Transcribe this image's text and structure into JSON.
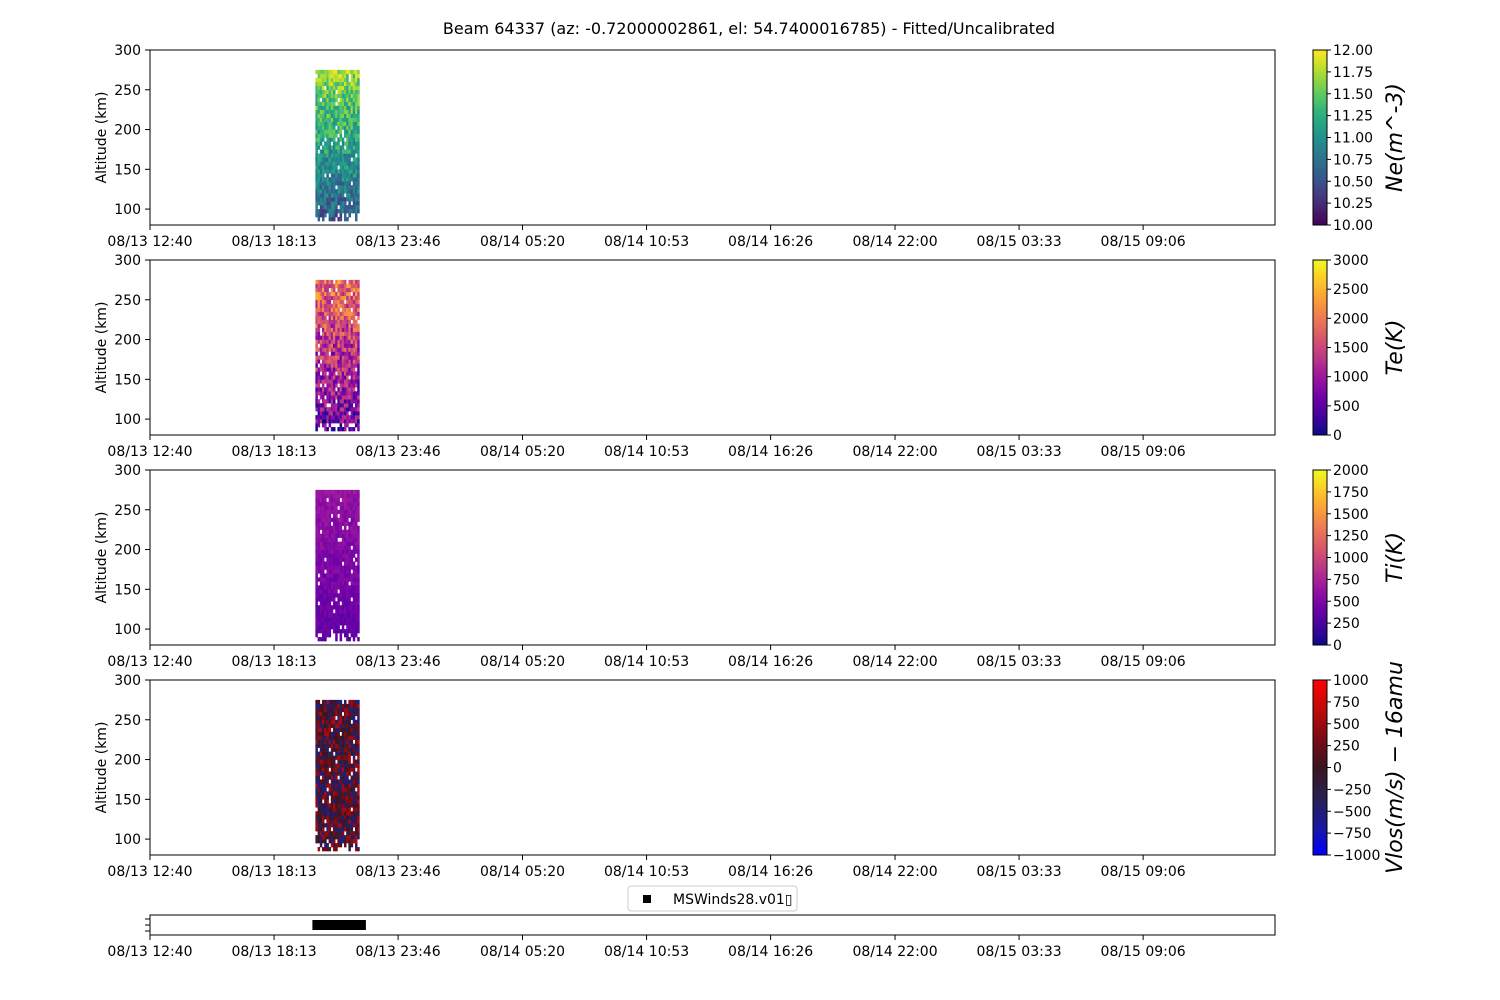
{
  "figure": {
    "title": "Beam 64337 (az: -0.72000002861, el: 54.7400016785) - Fitted/Uncalibrated"
  },
  "chart_data": [
    {
      "type": "heatmap",
      "panel": "ne",
      "ylabel": "Altitude (km)",
      "xlim": [
        "08/13 12:40",
        "08/15 15:00"
      ],
      "ylim": [
        80,
        300
      ],
      "y_ticks": [
        100,
        150,
        200,
        250,
        300
      ],
      "x_ticks": [
        "08/13 12:40",
        "08/13 18:13",
        "08/13 23:46",
        "08/14 05:20",
        "08/14 10:53",
        "08/14 16:26",
        "08/14 22:00",
        "08/15 03:33",
        "08/15 09:06"
      ],
      "data_extent": {
        "x": [
          "08/13 20:04",
          "08/13 22:03"
        ],
        "y": [
          85,
          275
        ]
      },
      "colorbar": {
        "label": "Ne(m^-3)",
        "colormap": "viridis",
        "range": [
          10.0,
          12.0
        ],
        "ticks": [
          "10.00",
          "10.25",
          "10.50",
          "10.75",
          "11.00",
          "11.25",
          "11.50",
          "11.75",
          "12.00"
        ]
      }
    },
    {
      "type": "heatmap",
      "panel": "te",
      "ylabel": "Altitude (km)",
      "xlim": [
        "08/13 12:40",
        "08/15 15:00"
      ],
      "ylim": [
        80,
        300
      ],
      "y_ticks": [
        100,
        150,
        200,
        250,
        300
      ],
      "x_ticks": [
        "08/13 12:40",
        "08/13 18:13",
        "08/13 23:46",
        "08/14 05:20",
        "08/14 10:53",
        "08/14 16:26",
        "08/14 22:00",
        "08/15 03:33",
        "08/15 09:06"
      ],
      "data_extent": {
        "x": [
          "08/13 20:04",
          "08/13 22:03"
        ],
        "y": [
          85,
          275
        ]
      },
      "colorbar": {
        "label": "Te(K)",
        "colormap": "plasma",
        "range": [
          0,
          3000
        ],
        "ticks": [
          "0",
          "500",
          "1000",
          "1500",
          "2000",
          "2500",
          "3000"
        ]
      }
    },
    {
      "type": "heatmap",
      "panel": "ti",
      "ylabel": "Altitude (km)",
      "xlim": [
        "08/13 12:40",
        "08/15 15:00"
      ],
      "ylim": [
        80,
        300
      ],
      "y_ticks": [
        100,
        150,
        200,
        250,
        300
      ],
      "x_ticks": [
        "08/13 12:40",
        "08/13 18:13",
        "08/13 23:46",
        "08/14 05:20",
        "08/14 10:53",
        "08/14 16:26",
        "08/14 22:00",
        "08/15 03:33",
        "08/15 09:06"
      ],
      "data_extent": {
        "x": [
          "08/13 20:04",
          "08/13 22:03"
        ],
        "y": [
          85,
          275
        ]
      },
      "colorbar": {
        "label": "Ti(K)",
        "colormap": "plasma",
        "range": [
          0,
          2000
        ],
        "ticks": [
          "0",
          "250",
          "500",
          "750",
          "1000",
          "1250",
          "1500",
          "1750",
          "2000"
        ]
      }
    },
    {
      "type": "heatmap",
      "panel": "vlos",
      "ylabel": "Altitude (km)",
      "xlim": [
        "08/13 12:40",
        "08/15 15:00"
      ],
      "ylim": [
        80,
        300
      ],
      "y_ticks": [
        100,
        150,
        200,
        250,
        300
      ],
      "x_ticks": [
        "08/13 12:40",
        "08/13 18:13",
        "08/13 23:46",
        "08/14 05:20",
        "08/14 10:53",
        "08/14 16:26",
        "08/14 22:00",
        "08/15 03:33",
        "08/15 09:06"
      ],
      "data_extent": {
        "x": [
          "08/13 20:04",
          "08/13 22:03"
        ],
        "y": [
          85,
          275
        ]
      },
      "colorbar": {
        "label": "Vlos(m/s) − 16amu",
        "colormap": "blue-black-red",
        "range": [
          -1000,
          1000
        ],
        "ticks": [
          "−1000",
          "−750",
          "−500",
          "−250",
          "0",
          "250",
          "500",
          "750",
          "1000"
        ]
      }
    },
    {
      "type": "scatter",
      "panel": "availability",
      "xlim": [
        "08/13 12:40",
        "08/15 15:00"
      ],
      "x_ticks": [
        "08/13 12:40",
        "08/13 18:13",
        "08/13 23:46",
        "08/14 05:20",
        "08/14 10:53",
        "08/14 16:26",
        "08/14 22:00",
        "08/15 03:33",
        "08/15 09:06"
      ],
      "series": [
        {
          "name": "MSWinds28.v01▯",
          "marker": "square",
          "color": "#000000",
          "x_range": [
            "08/13 20:04",
            "08/13 22:13"
          ]
        }
      ]
    }
  ]
}
